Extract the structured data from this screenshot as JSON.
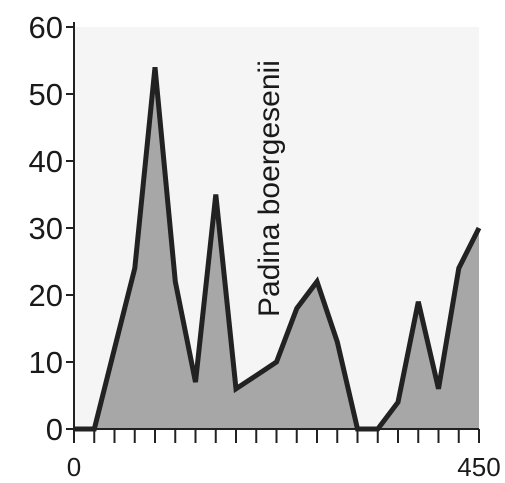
{
  "chart_data": {
    "type": "area",
    "title": "",
    "xlabel": "",
    "ylabel": "",
    "annotation": "Padina boergesenii",
    "xlim": [
      0,
      450
    ],
    "ylim": [
      0,
      60
    ],
    "x_tick_labels": [
      {
        "value": 0,
        "label": "0"
      },
      {
        "value": 450,
        "label": "450"
      }
    ],
    "y_ticks": [
      0,
      10,
      20,
      30,
      40,
      50,
      60
    ],
    "x_minor_tick_step": 22.5,
    "grid": false,
    "series": [
      {
        "x": [
          0,
          22.5,
          45,
          67.5,
          90,
          112.5,
          135,
          157.5,
          180,
          202.5,
          225,
          247.5,
          270,
          292.5,
          315,
          337.5,
          360,
          382.5,
          405,
          427.5,
          450
        ],
        "y": [
          0,
          0,
          12,
          24,
          54,
          22,
          7,
          35,
          6,
          8,
          10,
          18,
          22,
          13,
          0,
          0,
          4,
          19,
          6,
          24,
          30
        ]
      }
    ],
    "colors": {
      "fill": "#a7a7a7",
      "outline": "#222222",
      "plot_background": "#f5f5f5"
    }
  }
}
